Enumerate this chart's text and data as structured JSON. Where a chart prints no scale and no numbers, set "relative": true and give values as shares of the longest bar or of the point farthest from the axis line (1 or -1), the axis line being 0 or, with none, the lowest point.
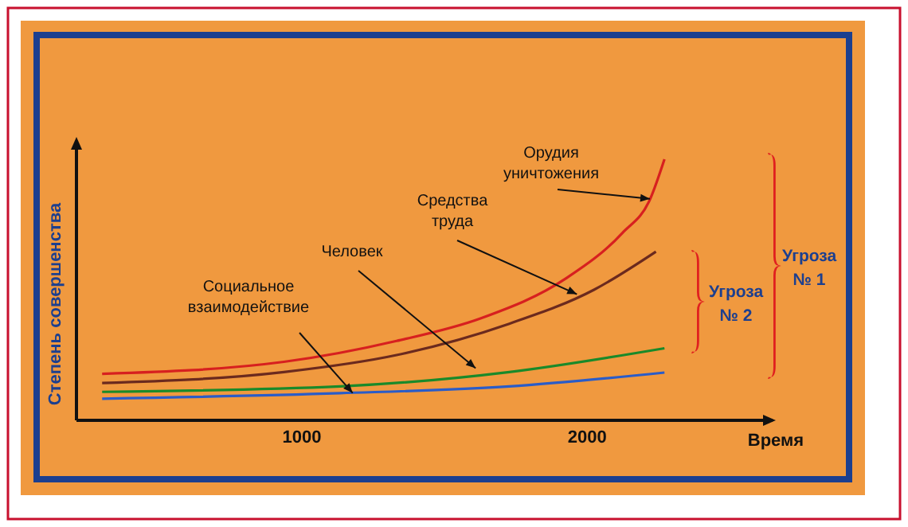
{
  "chart_data": {
    "type": "line",
    "relative": true,
    "xlabel": "Время",
    "ylabel": "Степень совершенства",
    "xlim": [
      210,
      2650
    ],
    "xticks": [
      1000,
      2000
    ],
    "grid": false,
    "marker": "none",
    "line_style": "solid",
    "series": [
      {
        "color": "#d7201f",
        "x": [
          300,
          937,
          1332,
          1628,
          1925,
          2123,
          2221,
          2271
        ],
        "values": [
          0.178,
          0.224,
          0.304,
          0.391,
          0.543,
          0.717,
          0.848,
          1
        ]
      },
      {
        "color": "#6b2a1e",
        "x": [
          300,
          937,
          1332,
          1727,
          2024,
          2241
        ],
        "values": [
          0.143,
          0.185,
          0.25,
          0.37,
          0.5,
          0.646
        ]
      },
      {
        "color": "#1a8a2a",
        "x": [
          300,
          1134,
          1727,
          2271
        ],
        "values": [
          0.109,
          0.13,
          0.185,
          0.276
        ]
      },
      {
        "color": "#2a5cc8",
        "x": [
          300,
          1134,
          1727,
          2271
        ],
        "values": [
          0.083,
          0.104,
          0.13,
          0.183
        ]
      }
    ],
    "annotations": [
      {
        "text": "Орудия уничтожения",
        "x": 2220,
        "y": 0.848
      },
      {
        "text": "Средства труда",
        "x": 1964,
        "y": 0.483
      },
      {
        "text": "Человек",
        "x": 1609,
        "y": 0.2
      },
      {
        "text": "Социальное взаимодействие",
        "x": 1178,
        "y": 0.105
      },
      "Угроза № 2",
      "Угроза № 1"
    ]
  }
}
